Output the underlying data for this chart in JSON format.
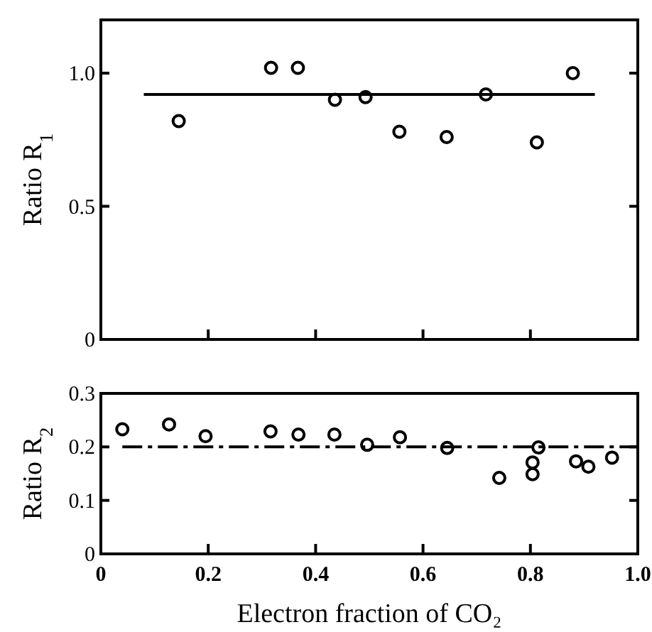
{
  "chart_data": [
    {
      "type": "scatter",
      "ylabel": "Ratio R$_{1}$",
      "xlim": [
        0,
        1
      ],
      "ylim": [
        0,
        1.2
      ],
      "tick_labels": "y",
      "xticks": [
        {
          "value": 0.2,
          "label": null
        },
        {
          "value": 0.4,
          "label": null
        },
        {
          "value": 0.6,
          "label": null
        },
        {
          "value": 0.8,
          "label": null
        }
      ],
      "yticks": [
        0,
        0.5,
        {
          "value": 1,
          "label": "1.0"
        }
      ],
      "series": [
        {
          "color": "#000000",
          "marker": "circle",
          "x": [
            0.145,
            0.317,
            0.367,
            0.436,
            0.493,
            0.556,
            0.644,
            0.717,
            0.812,
            0.879
          ],
          "values": [
            0.82,
            1.02,
            1.02,
            0.9,
            0.91,
            0.78,
            0.76,
            0.92,
            0.74,
            1.0
          ]
        },
        {
          "type": "line",
          "color": "#000000",
          "marker": "none",
          "line_style": "solid",
          "x": [
            0.08,
            0.92
          ],
          "values": [
            0.92,
            0.92
          ]
        }
      ]
    },
    {
      "type": "scatter",
      "ylabel": "Ratio R$_{2}$",
      "xlabel": "Electron fraction of CO₂",
      "xlim": [
        0,
        1
      ],
      "ylim": [
        0,
        0.3
      ],
      "xticks": [
        0,
        0.2,
        0.4,
        0.6,
        0.8,
        {
          "value": 1,
          "label": "1.0"
        }
      ],
      "yticks": [
        0,
        0.1,
        0.2,
        0.3
      ],
      "series": [
        {
          "color": "#000000",
          "marker": "circle",
          "x": [
            0.04,
            0.127,
            0.195,
            0.316,
            0.368,
            0.435,
            0.496,
            0.557,
            0.645,
            0.742,
            0.804,
            0.804,
            0.815,
            0.885,
            0.908,
            0.952
          ],
          "values": [
            0.233,
            0.242,
            0.22,
            0.229,
            0.223,
            0.223,
            0.204,
            0.218,
            0.198,
            0.142,
            0.171,
            0.149,
            0.199,
            0.173,
            0.163,
            0.18
          ]
        },
        {
          "type": "line",
          "color": "#000000",
          "marker": "none",
          "line_style": "dashed",
          "x": [
            0.04,
            1.0
          ],
          "values": [
            0.2,
            0.2
          ]
        }
      ]
    }
  ]
}
